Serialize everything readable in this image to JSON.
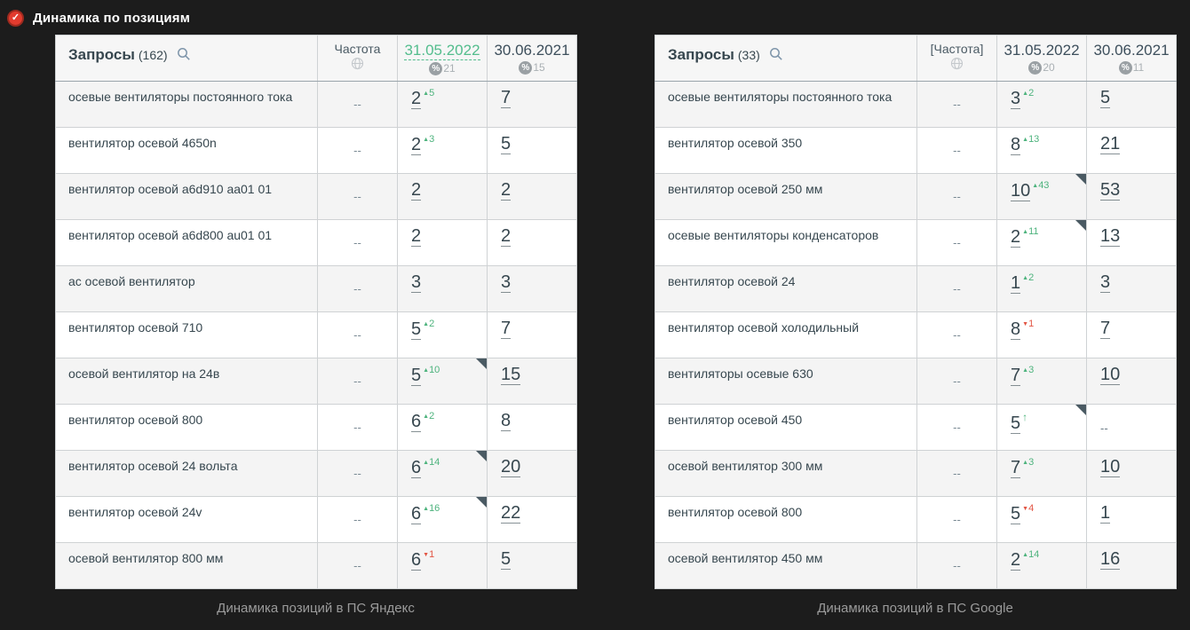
{
  "page": {
    "title": "Динамика по позициям"
  },
  "colors": {
    "page_background": "#1c1c1c",
    "accent_green": "#53bd8d",
    "delta_up": "#4db37d",
    "delta_down": "#e25544",
    "cell_blue": "#b7d7ec",
    "cell_green": "#a4dbad",
    "cell_green_mid": "#b9e4bf",
    "cell_green_light": "#cdecd0",
    "cell_beige": "#f3ead0",
    "header_icon_red": "#e23b2e"
  },
  "icons": {
    "title": "check-circle-icon",
    "queries": "search-icon",
    "frequency": "globe-icon",
    "percent": "percent-circle-icon"
  },
  "tables": [
    {
      "engine": "yandex",
      "caption": "Динамика позиций в ПС Яндекс",
      "queries_label": "Запросы",
      "queries_count": "(162)",
      "freq_label": "Частота",
      "columns": [
        {
          "date": "31.05.2022",
          "percent": "21",
          "active": true
        },
        {
          "date": "30.06.2021",
          "percent": "15",
          "active": false
        }
      ],
      "rows": [
        {
          "query": "осевые вентиляторы постоянного тока",
          "freq": "--",
          "cells": [
            {
              "value": "2",
              "delta": "5",
              "dir": "up",
              "bg": "blue"
            },
            {
              "value": "7",
              "bg": "green"
            }
          ]
        },
        {
          "query": "вентилятор осевой 4650n",
          "freq": "--",
          "cells": [
            {
              "value": "2",
              "delta": "3",
              "dir": "up",
              "bg": "blue"
            },
            {
              "value": "5",
              "bg": "green"
            }
          ]
        },
        {
          "query": "вентилятор осевой a6d910 aa01 01",
          "freq": "--",
          "cells": [
            {
              "value": "2",
              "bg": "blue"
            },
            {
              "value": "2",
              "bg": "blue"
            }
          ]
        },
        {
          "query": "вентилятор осевой a6d800 au01 01",
          "freq": "--",
          "cells": [
            {
              "value": "2",
              "bg": "blue"
            },
            {
              "value": "2",
              "bg": "blue"
            }
          ]
        },
        {
          "query": "ас осевой вентилятор",
          "freq": "--",
          "cells": [
            {
              "value": "3",
              "bg": "blue"
            },
            {
              "value": "3",
              "bg": "blue"
            }
          ]
        },
        {
          "query": "вентилятор осевой 710",
          "freq": "--",
          "cells": [
            {
              "value": "5",
              "delta": "2",
              "dir": "up",
              "bg": "green"
            },
            {
              "value": "7",
              "bg": "green"
            }
          ]
        },
        {
          "query": "осевой вентилятор на 24в",
          "freq": "--",
          "cells": [
            {
              "value": "5",
              "delta": "10",
              "dir": "up",
              "bg": "green",
              "corner": true
            },
            {
              "value": "15",
              "bg": "white"
            }
          ]
        },
        {
          "query": "вентилятор осевой 800",
          "freq": "--",
          "cells": [
            {
              "value": "6",
              "delta": "2",
              "dir": "up",
              "bg": "green-mid"
            },
            {
              "value": "8",
              "bg": "green-light"
            }
          ]
        },
        {
          "query": "вентилятор осевой 24 вольта",
          "freq": "--",
          "cells": [
            {
              "value": "6",
              "delta": "14",
              "dir": "up",
              "bg": "green-mid",
              "corner": true
            },
            {
              "value": "20",
              "bg": "white"
            }
          ]
        },
        {
          "query": "вентилятор осевой 24v",
          "freq": "--",
          "cells": [
            {
              "value": "6",
              "delta": "16",
              "dir": "up",
              "bg": "green-mid",
              "corner": true
            },
            {
              "value": "22",
              "bg": "white"
            }
          ]
        },
        {
          "query": "осевой вентилятор 800 мм",
          "freq": "--",
          "cells": [
            {
              "value": "6",
              "delta": "1",
              "dir": "down",
              "bg": "green-mid"
            },
            {
              "value": "5",
              "bg": "green"
            }
          ]
        }
      ]
    },
    {
      "engine": "google",
      "caption": "Динамика позиций в ПС Google",
      "queries_label": "Запросы",
      "queries_count": "(33)",
      "freq_label": "[Частота]",
      "columns": [
        {
          "date": "31.05.2022",
          "percent": "20",
          "active": false
        },
        {
          "date": "30.06.2021",
          "percent": "11",
          "active": false
        }
      ],
      "rows": [
        {
          "query": "осевые вентиляторы постоянного тока",
          "freq": "--",
          "cells": [
            {
              "value": "3",
              "delta": "2",
              "dir": "up",
              "bg": "blue"
            },
            {
              "value": "5",
              "bg": "green"
            }
          ]
        },
        {
          "query": "вентилятор осевой 350",
          "freq": "--",
          "cells": [
            {
              "value": "8",
              "delta": "13",
              "dir": "up",
              "bg": "green"
            },
            {
              "value": "21",
              "bg": "white"
            }
          ]
        },
        {
          "query": "вентилятор осевой 250 мм",
          "freq": "--",
          "cells": [
            {
              "value": "10",
              "delta": "43",
              "dir": "up",
              "bg": "green-light",
              "corner": true
            },
            {
              "value": "53",
              "bg": "white"
            }
          ]
        },
        {
          "query": "осевые вентиляторы конденсаторов",
          "freq": "--",
          "cells": [
            {
              "value": "2",
              "delta": "11",
              "dir": "up",
              "bg": "blue",
              "corner": true
            },
            {
              "value": "13",
              "bg": "white"
            }
          ]
        },
        {
          "query": "вентилятор осевой 24",
          "freq": "--",
          "cells": [
            {
              "value": "1",
              "delta": "2",
              "dir": "up",
              "bg": "blue"
            },
            {
              "value": "3",
              "bg": "blue"
            }
          ]
        },
        {
          "query": "вентилятор осевой холодильный",
          "freq": "--",
          "cells": [
            {
              "value": "8",
              "delta": "1",
              "dir": "down",
              "bg": "green"
            },
            {
              "value": "7",
              "bg": "green"
            }
          ]
        },
        {
          "query": "вентиляторы осевые 630",
          "freq": "--",
          "cells": [
            {
              "value": "7",
              "delta": "3",
              "dir": "up",
              "bg": "green"
            },
            {
              "value": "10",
              "bg": "green-light"
            }
          ]
        },
        {
          "query": "вентилятор осевой 450",
          "freq": "--",
          "cells": [
            {
              "value": "5",
              "dir": "new",
              "bg": "green",
              "corner": true
            },
            {
              "value": "--",
              "bg": "beige"
            }
          ]
        },
        {
          "query": "осевой вентилятор 300 мм",
          "freq": "--",
          "cells": [
            {
              "value": "7",
              "delta": "3",
              "dir": "up",
              "bg": "green"
            },
            {
              "value": "10",
              "bg": "green-light"
            }
          ]
        },
        {
          "query": "вентилятор осевой 800",
          "freq": "--",
          "cells": [
            {
              "value": "5",
              "delta": "4",
              "dir": "down",
              "bg": "green"
            },
            {
              "value": "1",
              "bg": "blue"
            }
          ]
        },
        {
          "query": "осевой вентилятор 450 мм",
          "freq": "--",
          "cells": [
            {
              "value": "2",
              "delta": "14",
              "dir": "up",
              "bg": "blue"
            },
            {
              "value": "16",
              "bg": "white"
            }
          ]
        }
      ]
    }
  ]
}
